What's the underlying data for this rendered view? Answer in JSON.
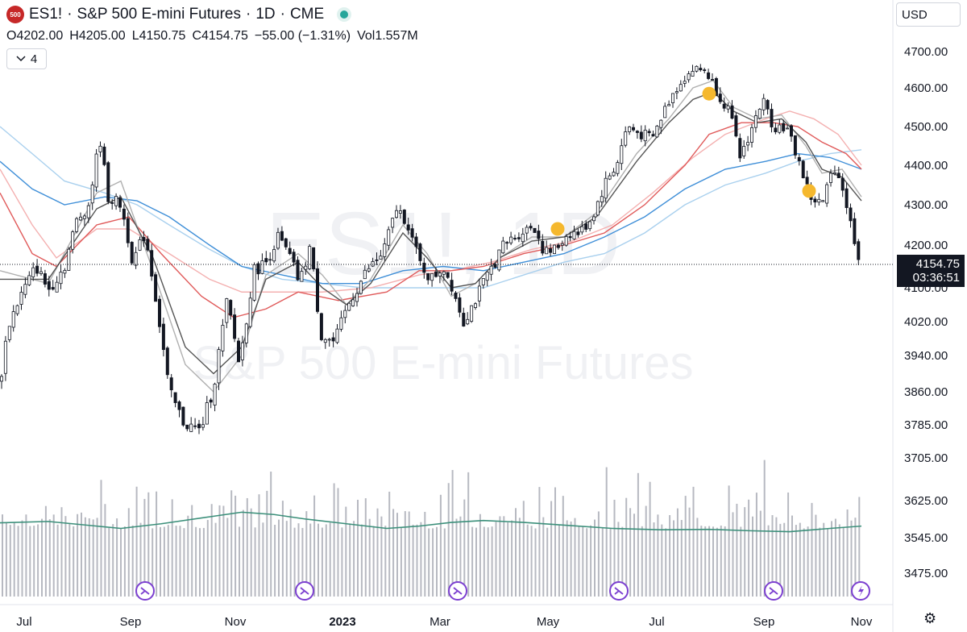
{
  "header": {
    "badge": "500",
    "symbol": "ES1!",
    "sep1": "·",
    "name": "S&P 500 E-mini Futures",
    "sep2": "·",
    "interval": "1D",
    "sep3": "·",
    "exchange": "CME"
  },
  "ohlc": {
    "open_key": "O",
    "open": "4202.00",
    "high_key": "H",
    "high": "4205.00",
    "low_key": "L",
    "low": "4150.75",
    "close_key": "C",
    "close": "4154.75",
    "change": "−55.00 (−1.31%)",
    "vol_key": "Vol",
    "vol": "1.557M"
  },
  "indicators_toggle": {
    "count": "4"
  },
  "currency": "USD",
  "last_price": {
    "value": "4154.75",
    "countdown": "03:36:51"
  },
  "watermark": {
    "symbol": "ES1!, 1D",
    "name": "S&P 500 E-mini Futures"
  },
  "colors": {
    "candle": "#131722",
    "sma_fast": "#b0b0b0",
    "ema_fast": "#555555",
    "ma_red": "#e05a5a",
    "ma_pink": "#f4b0b0",
    "ma_blue": "#3f8fd8",
    "ma_lightblue": "#a9d0ee",
    "volume": "#b7b9c1",
    "volume_ma": "#3b8f7a",
    "event_marker": "#f5b82e",
    "event_icon": "#7b3fd0"
  },
  "chart_data": {
    "type": "candlestick",
    "ylim": [
      3405,
      4745
    ],
    "y_ticks": [
      "4700.00",
      "4600.00",
      "4500.00",
      "4400.00",
      "4300.00",
      "4200.00",
      "4100.00",
      "4020.00",
      "3940.00",
      "3860.00",
      "3785.00",
      "3705.00",
      "3625.00",
      "3545.00",
      "3475.00"
    ],
    "x_ticks": [
      "Jul",
      "Sep",
      "Nov",
      "2023",
      "Mar",
      "May",
      "Jul",
      "Sep",
      "Nov"
    ],
    "close_path": [
      [
        0,
        3880
      ],
      [
        10,
        4010
      ],
      [
        25,
        4080
      ],
      [
        45,
        4150
      ],
      [
        60,
        4095
      ],
      [
        80,
        4150
      ],
      [
        95,
        4260
      ],
      [
        110,
        4300
      ],
      [
        124,
        4470
      ],
      [
        134,
        4320
      ],
      [
        150,
        4300
      ],
      [
        165,
        4160
      ],
      [
        180,
        4230
      ],
      [
        193,
        4080
      ],
      [
        210,
        3860
      ],
      [
        228,
        3790
      ],
      [
        248,
        3770
      ],
      [
        265,
        3870
      ],
      [
        282,
        4070
      ],
      [
        297,
        3920
      ],
      [
        315,
        4140
      ],
      [
        330,
        4160
      ],
      [
        345,
        4220
      ],
      [
        360,
        4170
      ],
      [
        372,
        4110
      ],
      [
        385,
        4200
      ],
      [
        398,
        3990
      ],
      [
        415,
        3970
      ],
      [
        432,
        4060
      ],
      [
        455,
        4140
      ],
      [
        475,
        4180
      ],
      [
        492,
        4290
      ],
      [
        505,
        4260
      ],
      [
        520,
        4160
      ],
      [
        535,
        4120
      ],
      [
        550,
        4150
      ],
      [
        562,
        4100
      ],
      [
        575,
        4020
      ],
      [
        592,
        4080
      ],
      [
        608,
        4140
      ],
      [
        625,
        4200
      ],
      [
        645,
        4230
      ],
      [
        662,
        4250
      ],
      [
        676,
        4180
      ],
      [
        690,
        4190
      ],
      [
        705,
        4230
      ],
      [
        720,
        4230
      ],
      [
        735,
        4270
      ],
      [
        752,
        4360
      ],
      [
        765,
        4400
      ],
      [
        778,
        4500
      ],
      [
        795,
        4480
      ],
      [
        810,
        4470
      ],
      [
        828,
        4560
      ],
      [
        845,
        4620
      ],
      [
        860,
        4650
      ],
      [
        875,
        4650
      ],
      [
        890,
        4590
      ],
      [
        905,
        4540
      ],
      [
        918,
        4420
      ],
      [
        932,
        4490
      ],
      [
        946,
        4570
      ],
      [
        960,
        4500
      ],
      [
        975,
        4500
      ],
      [
        990,
        4420
      ],
      [
        1005,
        4320
      ],
      [
        1020,
        4300
      ],
      [
        1035,
        4400
      ],
      [
        1045,
        4350
      ],
      [
        1057,
        4240
      ],
      [
        1069,
        4150
      ]
    ],
    "moving_averages": {
      "sma_fast": [
        [
          0,
          4140
        ],
        [
          60,
          4110
        ],
        [
          120,
          4330
        ],
        [
          150,
          4360
        ],
        [
          190,
          4140
        ],
        [
          230,
          3920
        ],
        [
          265,
          3860
        ],
        [
          300,
          3940
        ],
        [
          330,
          4130
        ],
        [
          370,
          4180
        ],
        [
          400,
          4130
        ],
        [
          430,
          4060
        ],
        [
          460,
          4120
        ],
        [
          500,
          4250
        ],
        [
          530,
          4180
        ],
        [
          560,
          4080
        ],
        [
          590,
          4110
        ],
        [
          620,
          4170
        ],
        [
          660,
          4220
        ],
        [
          700,
          4220
        ],
        [
          740,
          4280
        ],
        [
          790,
          4430
        ],
        [
          830,
          4520
        ],
        [
          860,
          4600
        ],
        [
          885,
          4620
        ],
        [
          910,
          4550
        ],
        [
          940,
          4520
        ],
        [
          970,
          4530
        ],
        [
          1000,
          4450
        ],
        [
          1020,
          4380
        ],
        [
          1045,
          4390
        ],
        [
          1069,
          4320
        ]
      ],
      "ema_fast": [
        [
          0,
          4120
        ],
        [
          60,
          4120
        ],
        [
          120,
          4290
        ],
        [
          150,
          4320
        ],
        [
          190,
          4170
        ],
        [
          230,
          3960
        ],
        [
          265,
          3900
        ],
        [
          300,
          3960
        ],
        [
          330,
          4120
        ],
        [
          370,
          4160
        ],
        [
          400,
          4100
        ],
        [
          430,
          4060
        ],
        [
          460,
          4110
        ],
        [
          500,
          4230
        ],
        [
          530,
          4170
        ],
        [
          560,
          4100
        ],
        [
          590,
          4110
        ],
        [
          620,
          4170
        ],
        [
          660,
          4210
        ],
        [
          700,
          4220
        ],
        [
          740,
          4270
        ],
        [
          790,
          4410
        ],
        [
          830,
          4510
        ],
        [
          860,
          4570
        ],
        [
          885,
          4590
        ],
        [
          910,
          4540
        ],
        [
          940,
          4510
        ],
        [
          970,
          4520
        ],
        [
          1000,
          4460
        ],
        [
          1020,
          4390
        ],
        [
          1045,
          4370
        ],
        [
          1069,
          4310
        ]
      ],
      "ma_red": [
        [
          0,
          4330
        ],
        [
          40,
          4180
        ],
        [
          70,
          4150
        ],
        [
          120,
          4250
        ],
        [
          160,
          4270
        ],
        [
          200,
          4180
        ],
        [
          250,
          4080
        ],
        [
          290,
          4030
        ],
        [
          330,
          4050
        ],
        [
          370,
          4090
        ],
        [
          420,
          4070
        ],
        [
          480,
          4090
        ],
        [
          520,
          4140
        ],
        [
          560,
          4140
        ],
        [
          600,
          4150
        ],
        [
          650,
          4180
        ],
        [
          700,
          4200
        ],
        [
          750,
          4230
        ],
        [
          800,
          4300
        ],
        [
          850,
          4400
        ],
        [
          880,
          4480
        ],
        [
          920,
          4510
        ],
        [
          960,
          4510
        ],
        [
          990,
          4500
        ],
        [
          1020,
          4460
        ],
        [
          1050,
          4430
        ],
        [
          1069,
          4390
        ]
      ],
      "ma_pink": [
        [
          0,
          4390
        ],
        [
          40,
          4250
        ],
        [
          70,
          4170
        ],
        [
          120,
          4240
        ],
        [
          160,
          4240
        ],
        [
          210,
          4180
        ],
        [
          260,
          4120
        ],
        [
          300,
          4090
        ],
        [
          350,
          4090
        ],
        [
          400,
          4090
        ],
        [
          460,
          4100
        ],
        [
          520,
          4130
        ],
        [
          560,
          4140
        ],
        [
          610,
          4160
        ],
        [
          660,
          4190
        ],
        [
          710,
          4210
        ],
        [
          760,
          4250
        ],
        [
          810,
          4330
        ],
        [
          860,
          4420
        ],
        [
          900,
          4480
        ],
        [
          950,
          4520
        ],
        [
          980,
          4540
        ],
        [
          1010,
          4520
        ],
        [
          1040,
          4480
        ],
        [
          1069,
          4400
        ]
      ],
      "ma_blue": [
        [
          0,
          4410
        ],
        [
          40,
          4340
        ],
        [
          80,
          4300
        ],
        [
          130,
          4320
        ],
        [
          170,
          4310
        ],
        [
          210,
          4270
        ],
        [
          260,
          4200
        ],
        [
          300,
          4150
        ],
        [
          350,
          4130
        ],
        [
          400,
          4110
        ],
        [
          450,
          4110
        ],
        [
          500,
          4140
        ],
        [
          550,
          4150
        ],
        [
          600,
          4140
        ],
        [
          650,
          4160
        ],
        [
          700,
          4180
        ],
        [
          750,
          4220
        ],
        [
          800,
          4270
        ],
        [
          850,
          4340
        ],
        [
          900,
          4390
        ],
        [
          950,
          4410
        ],
        [
          990,
          4430
        ],
        [
          1030,
          4420
        ],
        [
          1069,
          4390
        ]
      ],
      "ma_lightblue": [
        [
          0,
          4500
        ],
        [
          40,
          4430
        ],
        [
          80,
          4360
        ],
        [
          130,
          4330
        ],
        [
          170,
          4300
        ],
        [
          210,
          4250
        ],
        [
          260,
          4190
        ],
        [
          300,
          4150
        ],
        [
          350,
          4120
        ],
        [
          400,
          4110
        ],
        [
          450,
          4100
        ],
        [
          500,
          4100
        ],
        [
          550,
          4100
        ],
        [
          600,
          4100
        ],
        [
          650,
          4130
        ],
        [
          700,
          4160
        ],
        [
          750,
          4180
        ],
        [
          800,
          4230
        ],
        [
          850,
          4300
        ],
        [
          900,
          4350
        ],
        [
          950,
          4380
        ],
        [
          990,
          4410
        ],
        [
          1030,
          4430
        ],
        [
          1069,
          4440
        ]
      ]
    },
    "volume_ma_path": [
      [
        0,
        3577
      ],
      [
        60,
        3580
      ],
      [
        120,
        3570
      ],
      [
        150,
        3565
      ],
      [
        200,
        3575
      ],
      [
        260,
        3590
      ],
      [
        300,
        3600
      ],
      [
        340,
        3595
      ],
      [
        380,
        3585
      ],
      [
        430,
        3575
      ],
      [
        480,
        3565
      ],
      [
        520,
        3570
      ],
      [
        560,
        3578
      ],
      [
        600,
        3582
      ],
      [
        650,
        3578
      ],
      [
        700,
        3572
      ],
      [
        760,
        3565
      ],
      [
        820,
        3562
      ],
      [
        880,
        3563
      ],
      [
        930,
        3560
      ],
      [
        980,
        3558
      ],
      [
        1030,
        3565
      ],
      [
        1069,
        3570
      ]
    ],
    "event_markers": [
      {
        "x": 692,
        "price": 4240
      },
      {
        "x": 880,
        "price": 4585
      },
      {
        "x": 1004,
        "price": 4335
      }
    ],
    "event_icons": [
      {
        "x": 180,
        "type": "dividend"
      },
      {
        "x": 378,
        "type": "dividend"
      },
      {
        "x": 568,
        "type": "dividend"
      },
      {
        "x": 768,
        "type": "dividend"
      },
      {
        "x": 960,
        "type": "dividend"
      },
      {
        "x": 1068,
        "type": "earnings"
      }
    ],
    "last_close": 4154.75
  }
}
